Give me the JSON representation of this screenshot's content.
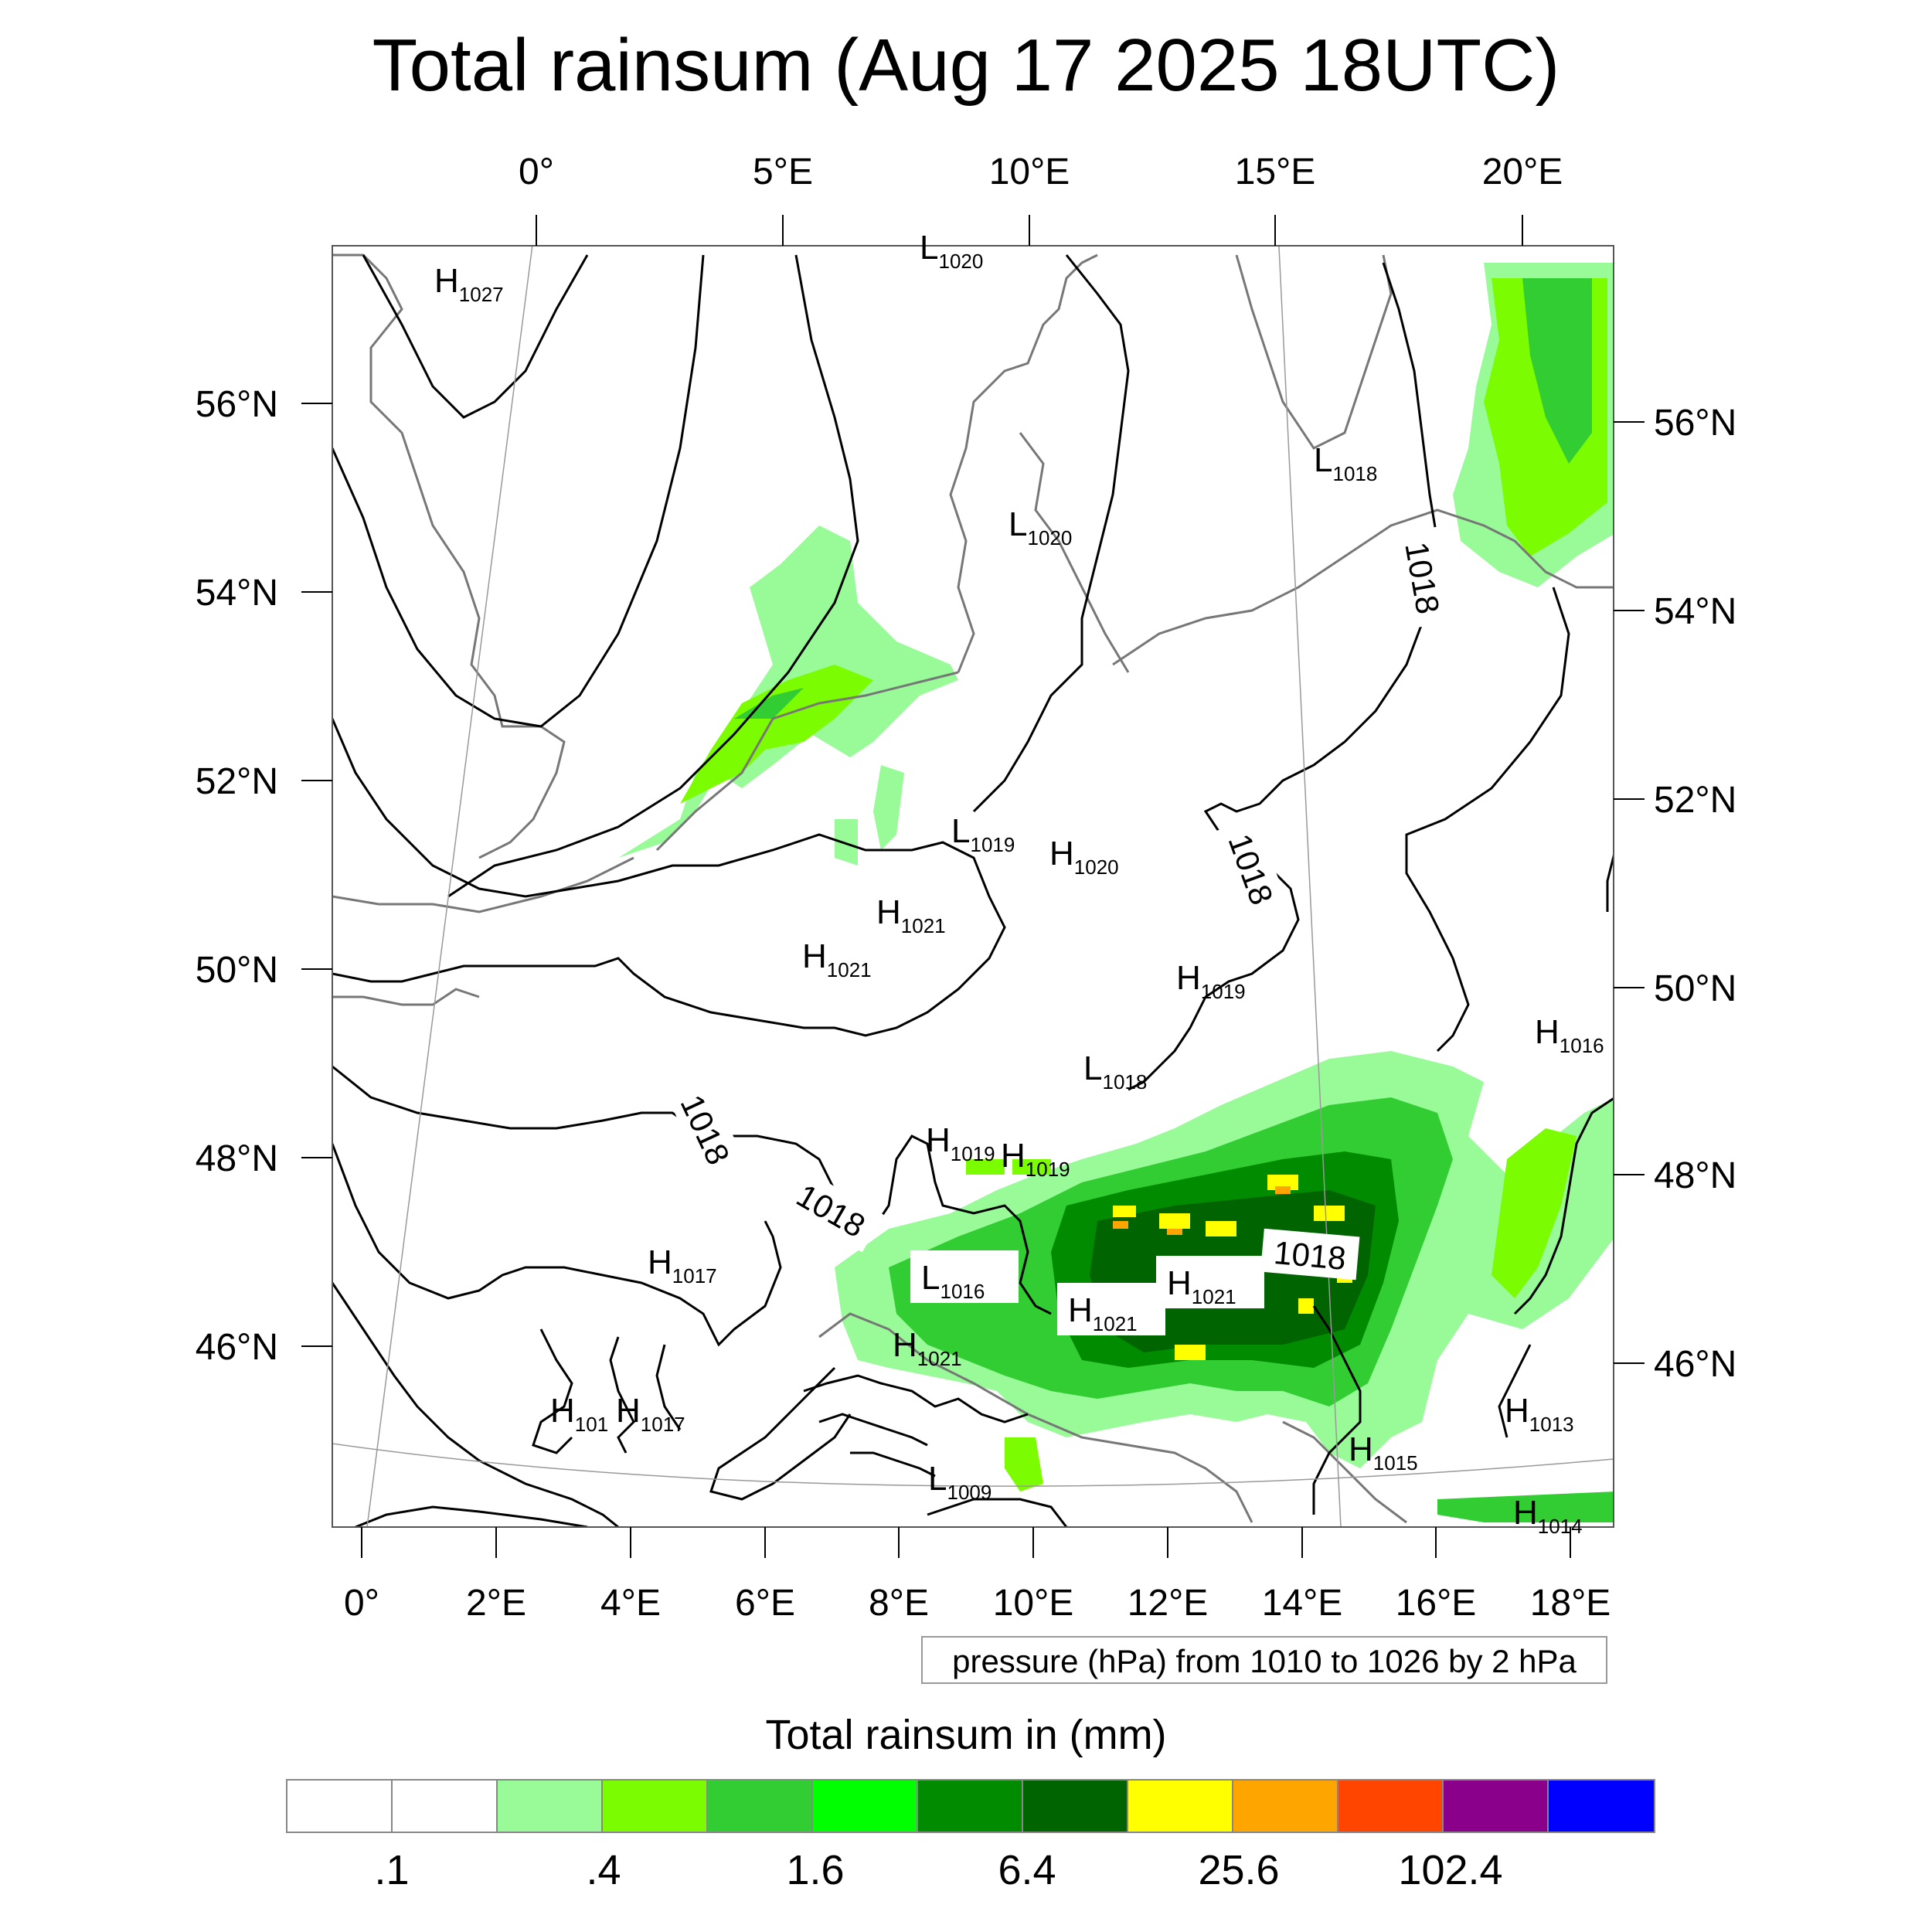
{
  "title": "Total rainsum (Aug 17 2025 18UTC)",
  "top_ticks": [
    "0°",
    "5°E",
    "10°E",
    "15°E",
    "20°E"
  ],
  "bottom_ticks": [
    "0°",
    "2°E",
    "4°E",
    "6°E",
    "8°E",
    "10°E",
    "12°E",
    "14°E",
    "16°E",
    "18°E"
  ],
  "left_ticks": [
    "56°N",
    "54°N",
    "52°N",
    "50°N",
    "48°N",
    "46°N"
  ],
  "right_ticks": [
    "56°N",
    "54°N",
    "52°N",
    "50°N",
    "48°N",
    "46°N"
  ],
  "contour_note": "pressure (hPa) from 1010 to 1026 by 2 hPa",
  "colorbar": {
    "title": "Total rainsum in (mm)",
    "colors": [
      "#ffffff",
      "#ffffff",
      "#98fb98",
      "#7cfc00",
      "#32cd32",
      "#00ff00",
      "#008b00",
      "#006400",
      "#ffff00",
      "#ffa500",
      "#ff4500",
      "#8b008b",
      "#0000ff"
    ],
    "labels": [
      ".1",
      ".4",
      "1.6",
      "6.4",
      "25.6",
      "102.4"
    ]
  },
  "pressure_labels": [
    {
      "kind": "H",
      "value": "1027"
    },
    {
      "kind": "L",
      "value": "1020"
    },
    {
      "kind": "L",
      "value": "1018"
    },
    {
      "kind": "L",
      "value": "1020"
    },
    {
      "kind": "L",
      "value": "1019"
    },
    {
      "kind": "H",
      "value": "1020"
    },
    {
      "kind": "H",
      "value": "1021"
    },
    {
      "kind": "H",
      "value": "1021"
    },
    {
      "kind": "H",
      "value": "1019"
    },
    {
      "kind": "H",
      "value": "1016"
    },
    {
      "kind": "L",
      "value": "1018"
    },
    {
      "kind": "H",
      "value": "1019"
    },
    {
      "kind": "H",
      "value": "1019"
    },
    {
      "kind": "H",
      "value": "1017"
    },
    {
      "kind": "L",
      "value": "1016"
    },
    {
      "kind": "H",
      "value": "1021"
    },
    {
      "kind": "H",
      "value": "1021"
    },
    {
      "kind": "H",
      "value": "1021"
    },
    {
      "kind": "H",
      "value": "101"
    },
    {
      "kind": "H",
      "value": "1017"
    },
    {
      "kind": "H",
      "value": "1013"
    },
    {
      "kind": "H",
      "value": "1015"
    },
    {
      "kind": "L",
      "value": "1009"
    },
    {
      "kind": "H",
      "value": "1014"
    }
  ],
  "isobar_labels": [
    "1018",
    "1018",
    "1018",
    "1018",
    "1018"
  ]
}
